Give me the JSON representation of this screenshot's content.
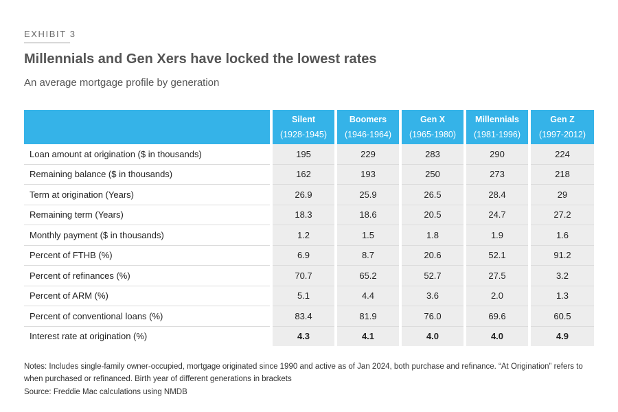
{
  "exhibit_label": "EXHIBIT 3",
  "title": "Millennials and Gen Xers have locked the lowest rates",
  "subtitle": "An average mortgage profile by generation",
  "table": {
    "header_blank": "",
    "generations": [
      {
        "name": "Silent",
        "years": "(1928-1945)"
      },
      {
        "name": "Boomers",
        "years": "(1946-1964)"
      },
      {
        "name": "Gen X",
        "years": "(1965-1980)"
      },
      {
        "name": "Millennials",
        "years": "(1981-1996)"
      },
      {
        "name": "Gen Z",
        "years": "(1997-2012)"
      }
    ],
    "rows": [
      {
        "label": "Loan amount at origination ($ in thousands)",
        "values": [
          "195",
          "229",
          "283",
          "290",
          "224"
        ]
      },
      {
        "label": "Remaining balance ($ in thousands)",
        "values": [
          "162",
          "193",
          "250",
          "273",
          "218"
        ]
      },
      {
        "label": "Term at origination (Years)",
        "values": [
          "26.9",
          "25.9",
          "26.5",
          "28.4",
          "29"
        ]
      },
      {
        "label": "Remaining term (Years)",
        "values": [
          "18.3",
          "18.6",
          "20.5",
          "24.7",
          "27.2"
        ]
      },
      {
        "label": "Monthly payment ($ in thousands)",
        "values": [
          "1.2",
          "1.5",
          "1.8",
          "1.9",
          "1.6"
        ]
      },
      {
        "label": "Percent of FTHB (%)",
        "values": [
          "6.9",
          "8.7",
          "20.6",
          "52.1",
          "91.2"
        ]
      },
      {
        "label": "Percent of refinances (%)",
        "values": [
          "70.7",
          "65.2",
          "52.7",
          "27.5",
          "3.2"
        ]
      },
      {
        "label": "Percent of ARM (%)",
        "values": [
          "5.1",
          "4.4",
          "3.6",
          "2.0",
          "1.3"
        ]
      },
      {
        "label": "Percent of conventional loans (%)",
        "values": [
          "83.4",
          "81.9",
          "76.0",
          "69.6",
          "60.5"
        ]
      },
      {
        "label": "Interest rate at origination (%)",
        "values": [
          "4.3",
          "4.1",
          "4.0",
          "4.0",
          "4.9"
        ]
      }
    ]
  },
  "notes": "Notes: Includes single-family owner-occupied, mortgage originated since 1990 and active as of Jan 2024, both purchase and refinance. “At Origination” refers to when purchased or refinanced. Birth year of different generations in brackets",
  "source": "Source: Freddie Mac calculations using NMDB",
  "colors": {
    "header_background": "#35b3e8",
    "value_cell_background": "#ededed",
    "title_text": "#555555"
  }
}
